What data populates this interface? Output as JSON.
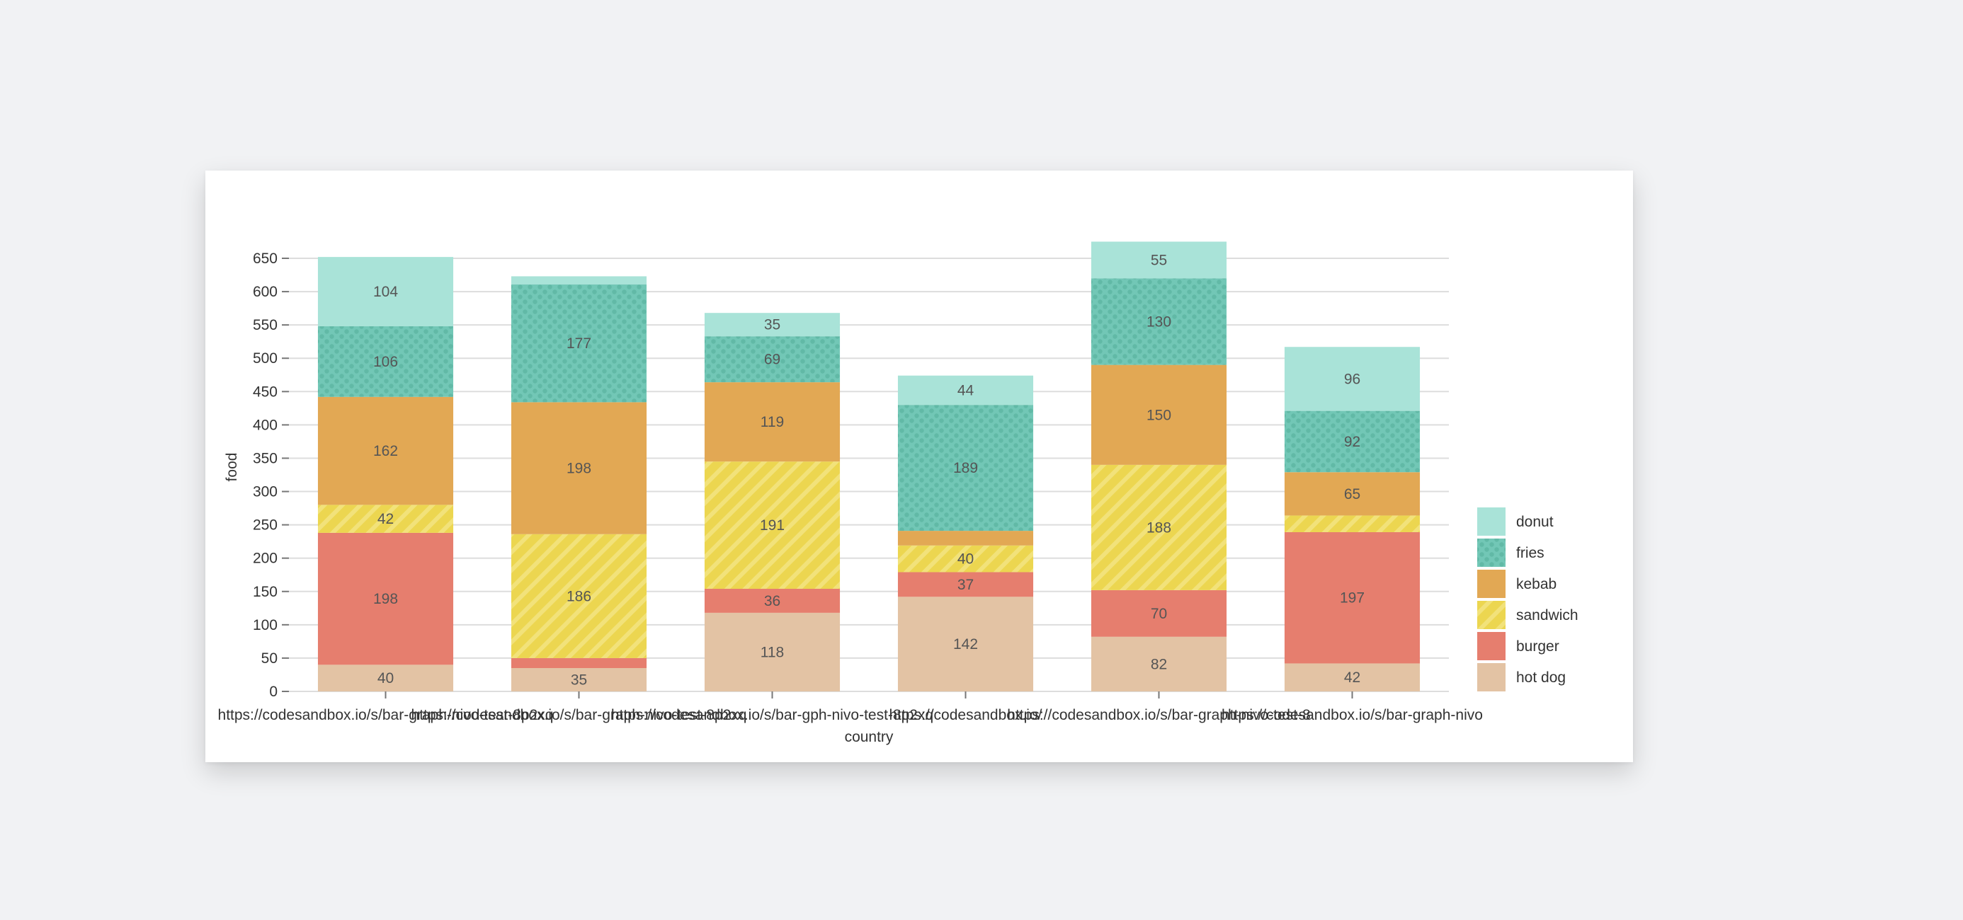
{
  "chart_data": {
    "type": "bar",
    "stacked": true,
    "title": "",
    "xlabel": "country",
    "ylabel": "food",
    "ylim": [
      0,
      650
    ],
    "yticks": [
      0,
      50,
      100,
      150,
      200,
      250,
      300,
      350,
      400,
      450,
      500,
      550,
      600,
      650
    ],
    "grid": true,
    "legend_position": "right-bottom",
    "categories": [
      "https://codesandbox.io/s/bar-graph-nivo-test-8p2xq",
      "https://codesandbox.io/s/bar-graph-nivo-test-8p2xq",
      "https://codesandbox.io/s/bar-gph-nivo-test-8p2xq",
      "https://codesandbox.io/",
      "https://codesandbox.io/s/bar-graph-nivo-test-8",
      "https://codesandbox.io/s/bar-graph-nivo"
    ],
    "series": [
      {
        "name": "hot dog",
        "color": "#e3c3a4",
        "pattern": "none",
        "values": [
          40,
          35,
          118,
          142,
          82,
          42
        ]
      },
      {
        "name": "burger",
        "color": "#e67e6e",
        "pattern": "none",
        "values": [
          198,
          15,
          36,
          37,
          70,
          197
        ]
      },
      {
        "name": "sandwich",
        "color": "#ecd650",
        "pattern": "lines",
        "values": [
          42,
          186,
          191,
          40,
          188,
          25
        ]
      },
      {
        "name": "kebab",
        "color": "#e2a854",
        "pattern": "none",
        "values": [
          162,
          198,
          119,
          22,
          150,
          65
        ]
      },
      {
        "name": "fries",
        "color": "#72c7b6",
        "pattern": "dots",
        "values": [
          106,
          177,
          69,
          189,
          130,
          92
        ]
      },
      {
        "name": "donut",
        "color": "#a9e3d8",
        "pattern": "none",
        "values": [
          104,
          12,
          35,
          44,
          55,
          96
        ]
      }
    ],
    "hidden_labels": {
      "burger": [
        1
      ],
      "sandwich": [
        5
      ],
      "kebab": [
        3
      ],
      "donut": [
        1
      ]
    },
    "legend_order": [
      "donut",
      "fries",
      "kebab",
      "sandwich",
      "burger",
      "hot dog"
    ]
  }
}
